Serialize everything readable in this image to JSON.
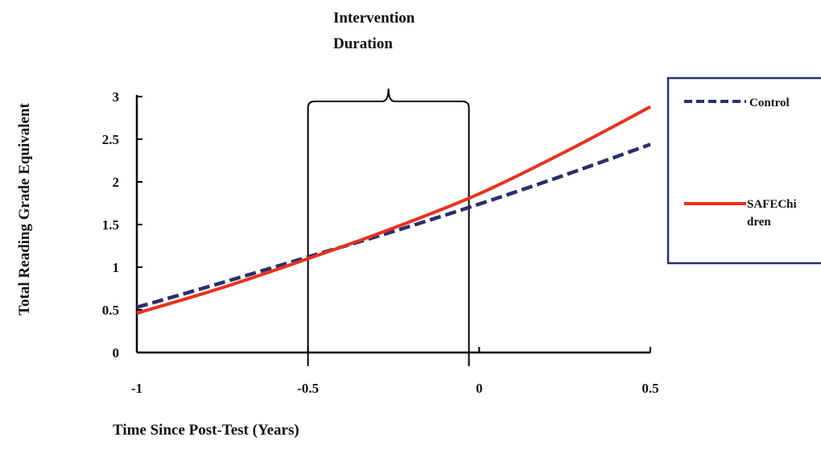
{
  "chart_data": {
    "type": "line",
    "title": "",
    "xlabel": "Time Since Post-Test (Years)",
    "ylabel": "Total Reading Grade Equivalent",
    "xlim": [
      -1,
      0.5
    ],
    "ylim": [
      0,
      3
    ],
    "xticks": [
      -1,
      -0.5,
      0,
      0.5
    ],
    "xtick_labels": [
      "-1",
      "-0.5",
      "0",
      "0.5"
    ],
    "yticks": [
      0,
      0.5,
      1,
      1.5,
      2,
      2.5,
      3
    ],
    "ytick_labels": [
      "0",
      "0.5",
      "1",
      "1.5",
      "2",
      "2.5",
      "3"
    ],
    "grid": false,
    "legend_position": "right",
    "series": [
      {
        "name": "Control",
        "color": "#2b2f6b",
        "style": "dashed",
        "x": [
          -1,
          -0.75,
          -0.5,
          -0.25,
          0,
          0.25,
          0.5
        ],
        "y": [
          0.53,
          0.82,
          1.12,
          1.42,
          1.74,
          2.08,
          2.44
        ]
      },
      {
        "name": "SAFEChi dren",
        "name_lines": [
          "SAFEChi",
          "dren"
        ],
        "color": "#e8321e",
        "style": "solid",
        "x": [
          -1,
          -0.75,
          -0.5,
          -0.25,
          0,
          0.25,
          0.5
        ],
        "y": [
          0.46,
          0.76,
          1.1,
          1.46,
          1.86,
          2.35,
          2.88
        ]
      }
    ],
    "annotations": [
      {
        "type": "bracket",
        "x_start": -0.5,
        "x_end": -0.03,
        "text_lines": [
          "Intervention",
          "Duration"
        ]
      }
    ]
  }
}
